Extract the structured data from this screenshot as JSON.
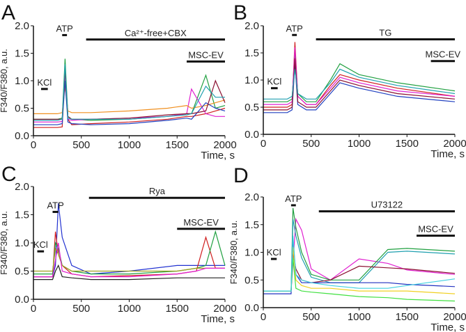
{
  "chart_data": [
    {
      "panel": "A",
      "type": "line",
      "ylabel": "F340/F380, a.u.",
      "xlabel": "Time, s",
      "xlim": [
        0,
        2000
      ],
      "ylim": [
        0,
        2
      ],
      "xticks": [
        0,
        500,
        1000,
        1500,
        2000
      ],
      "yticks": [
        "0.0",
        "0.5",
        "1.0",
        "1.5",
        "2.0"
      ],
      "bars": [
        {
          "label": "KCl",
          "start": 80,
          "end": 150,
          "y": 0.85
        },
        {
          "label": "ATP",
          "start": 300,
          "end": 350,
          "y": 1.83
        },
        {
          "label": "Ca²⁺-free+CBX",
          "start": 550,
          "end": 2000,
          "y": 1.75
        },
        {
          "label": "MSC-EV",
          "start": 1600,
          "end": 2000,
          "y": 1.35
        }
      ],
      "x": [
        0,
        250,
        300,
        330,
        360,
        400,
        600,
        1000,
        1400,
        1600,
        1650,
        1800,
        1900,
        2000
      ],
      "series": [
        {
          "color": "#d02020",
          "values": [
            0.15,
            0.15,
            0.16,
            1.25,
            0.3,
            0.2,
            0.22,
            0.25,
            0.3,
            0.35,
            0.35,
            0.4,
            0.45,
            0.5
          ]
        },
        {
          "color": "#20a040",
          "values": [
            0.3,
            0.3,
            0.32,
            1.4,
            0.35,
            0.3,
            0.28,
            0.3,
            0.35,
            0.4,
            0.4,
            1.1,
            0.5,
            0.55
          ]
        },
        {
          "color": "#e020d0",
          "values": [
            0.25,
            0.25,
            0.26,
            1.1,
            0.3,
            0.28,
            0.3,
            0.32,
            0.35,
            0.4,
            0.85,
            0.4,
            0.35,
            0.35
          ]
        },
        {
          "color": "#f09020",
          "values": [
            0.4,
            0.4,
            0.42,
            0.9,
            0.45,
            0.42,
            0.42,
            0.45,
            0.5,
            0.55,
            0.5,
            0.55,
            0.6,
            0.65
          ]
        },
        {
          "color": "#2040c0",
          "values": [
            0.2,
            0.2,
            0.22,
            1.0,
            0.25,
            0.22,
            0.2,
            0.22,
            0.28,
            0.32,
            0.3,
            0.6,
            0.5,
            0.45
          ]
        },
        {
          "color": "#8a1030",
          "values": [
            0.3,
            0.3,
            0.3,
            1.2,
            0.35,
            0.3,
            0.3,
            0.32,
            0.38,
            0.4,
            0.4,
            0.45,
            1.0,
            0.6
          ]
        },
        {
          "color": "#20a0b0",
          "values": [
            0.28,
            0.28,
            0.3,
            1.3,
            0.32,
            0.3,
            0.3,
            0.3,
            0.35,
            0.38,
            0.4,
            0.9,
            0.7,
            0.7
          ]
        }
      ]
    },
    {
      "panel": "B",
      "type": "line",
      "ylabel": "",
      "xlabel": "Time, s",
      "xlim": [
        0,
        2000
      ],
      "ylim": [
        0,
        2
      ],
      "xticks": [
        0,
        500,
        1000,
        1500,
        2000
      ],
      "yticks": [
        "0.0",
        "0.5",
        "1.0",
        "1.5",
        "2.0"
      ],
      "bars": [
        {
          "label": "KCl",
          "start": 80,
          "end": 150,
          "y": 0.85
        },
        {
          "label": "ATP",
          "start": 300,
          "end": 350,
          "y": 1.83
        },
        {
          "label": "TG",
          "start": 550,
          "end": 2000,
          "y": 1.75
        },
        {
          "label": "MSC-EV",
          "start": 1750,
          "end": 2000,
          "y": 1.35
        }
      ],
      "x": [
        0,
        250,
        300,
        330,
        360,
        450,
        550,
        700,
        800,
        1000,
        1400,
        2000
      ],
      "series": [
        {
          "color": "#d02020",
          "values": [
            0.5,
            0.5,
            0.55,
            1.7,
            0.7,
            0.55,
            0.55,
            0.9,
            1.1,
            1.0,
            0.85,
            0.7
          ]
        },
        {
          "color": "#20a040",
          "values": [
            0.6,
            0.6,
            0.65,
            1.5,
            0.75,
            0.6,
            0.6,
            1.0,
            1.3,
            1.1,
            0.95,
            0.8
          ]
        },
        {
          "color": "#2040c0",
          "values": [
            0.4,
            0.4,
            0.45,
            1.3,
            0.55,
            0.45,
            0.45,
            0.75,
            0.95,
            0.85,
            0.7,
            0.6
          ]
        },
        {
          "color": "#e020d0",
          "values": [
            0.55,
            0.55,
            0.6,
            1.6,
            0.7,
            0.55,
            0.55,
            0.85,
            1.05,
            0.95,
            0.8,
            0.7
          ]
        },
        {
          "color": "#8a1030",
          "values": [
            0.45,
            0.45,
            0.5,
            1.4,
            0.6,
            0.5,
            0.5,
            0.8,
            1.0,
            0.9,
            0.75,
            0.65
          ]
        },
        {
          "color": "#20a0b0",
          "values": [
            0.65,
            0.65,
            0.7,
            1.2,
            0.75,
            0.65,
            0.65,
            0.95,
            1.2,
            1.05,
            0.9,
            0.75
          ]
        }
      ]
    },
    {
      "panel": "C",
      "type": "line",
      "ylabel": "F340/F380, a.u.",
      "xlabel": "Time, s",
      "xlim": [
        0,
        2000
      ],
      "ylim": [
        0,
        2
      ],
      "xticks": [
        0,
        500,
        1000,
        1500,
        2000
      ],
      "yticks": [
        "0.0",
        "0.5",
        "1.0",
        "1.5",
        "2.0"
      ],
      "bars": [
        {
          "label": "KCl",
          "start": 40,
          "end": 110,
          "y": 0.85
        },
        {
          "label": "ATP",
          "start": 200,
          "end": 260,
          "y": 1.55
        },
        {
          "label": "Rya",
          "start": 580,
          "end": 2000,
          "y": 1.8
        },
        {
          "label": "MSC-EV",
          "start": 1500,
          "end": 2000,
          "y": 1.25
        }
      ],
      "x": [
        0,
        200,
        230,
        260,
        300,
        400,
        600,
        1000,
        1500,
        1700,
        1800,
        1900,
        2000
      ],
      "series": [
        {
          "color": "#2030d0",
          "values": [
            0.4,
            0.4,
            0.6,
            1.7,
            1.1,
            0.6,
            0.45,
            0.5,
            0.6,
            0.6,
            0.6,
            0.6,
            0.6
          ]
        },
        {
          "color": "#d02020",
          "values": [
            0.4,
            0.4,
            1.2,
            0.8,
            0.6,
            0.45,
            0.4,
            0.42,
            0.45,
            0.5,
            1.1,
            0.55,
            0.55
          ]
        },
        {
          "color": "#20a040",
          "values": [
            0.45,
            0.45,
            1.0,
            0.9,
            0.6,
            0.5,
            0.45,
            0.45,
            0.5,
            0.55,
            0.6,
            1.2,
            0.6
          ]
        },
        {
          "color": "#a0a020",
          "values": [
            0.5,
            0.5,
            0.9,
            0.8,
            0.6,
            0.5,
            0.5,
            0.5,
            0.5,
            0.55,
            0.55,
            0.55,
            0.55
          ]
        },
        {
          "color": "#e020d0",
          "values": [
            0.4,
            0.4,
            0.7,
            1.0,
            0.5,
            0.45,
            0.4,
            0.4,
            0.45,
            0.5,
            0.55,
            0.55,
            0.55
          ]
        },
        {
          "color": "#202020",
          "values": [
            0.35,
            0.35,
            0.5,
            0.6,
            0.4,
            0.38,
            0.35,
            0.35,
            0.38,
            0.38,
            0.38,
            0.38,
            0.38
          ]
        }
      ]
    },
    {
      "panel": "D",
      "type": "line",
      "ylabel": "F340/F380, a.u.",
      "xlabel": "Time, s",
      "xlim": [
        0,
        2000
      ],
      "ylim": [
        0,
        2
      ],
      "xticks": [
        0,
        500,
        1000,
        1500,
        2000
      ],
      "yticks": [
        "0.0",
        "0.5",
        "1.0",
        "1.5",
        "2.0"
      ],
      "bars": [
        {
          "label": "KCl",
          "start": 80,
          "end": 140,
          "y": 0.88
        },
        {
          "label": "ATP",
          "start": 290,
          "end": 340,
          "y": 1.85
        },
        {
          "label": "U73122",
          "start": 580,
          "end": 2000,
          "y": 1.74
        },
        {
          "label": "MSC-EV",
          "start": 1600,
          "end": 2000,
          "y": 1.3
        }
      ],
      "x": [
        0,
        290,
        310,
        340,
        400,
        500,
        700,
        1000,
        1300,
        1500,
        2000
      ],
      "series": [
        {
          "color": "#e020d0",
          "values": [
            0.3,
            0.3,
            0.8,
            1.6,
            1.4,
            0.7,
            0.5,
            0.88,
            0.8,
            0.68,
            0.6
          ]
        },
        {
          "color": "#20a040",
          "values": [
            0.3,
            0.3,
            1.8,
            1.45,
            1.0,
            0.6,
            0.5,
            0.5,
            1.05,
            1.07,
            1.02
          ]
        },
        {
          "color": "#20a0b0",
          "values": [
            0.3,
            0.3,
            1.6,
            1.3,
            0.9,
            0.55,
            0.45,
            0.45,
            1.0,
            1.02,
            0.97
          ]
        },
        {
          "color": "#8a1030",
          "values": [
            0.3,
            0.3,
            1.0,
            0.7,
            0.5,
            0.45,
            0.5,
            0.75,
            0.72,
            0.7,
            0.62
          ]
        },
        {
          "color": "#2030c0",
          "values": [
            0.25,
            0.25,
            1.2,
            0.6,
            0.45,
            0.45,
            0.45,
            0.45,
            0.45,
            0.42,
            0.38
          ]
        },
        {
          "color": "#f0d020",
          "values": [
            0.3,
            0.3,
            1.1,
            0.5,
            0.4,
            0.35,
            0.35,
            0.3,
            0.3,
            0.3,
            0.25
          ]
        },
        {
          "color": "#40e040",
          "values": [
            0.3,
            0.3,
            0.9,
            0.35,
            0.3,
            0.28,
            0.25,
            0.2,
            0.18,
            0.15,
            0.12
          ]
        },
        {
          "color": "#40d0e0",
          "values": [
            0.3,
            0.3,
            1.3,
            0.6,
            0.5,
            0.45,
            0.4,
            0.35,
            0.35,
            0.4,
            0.52
          ]
        }
      ]
    }
  ]
}
